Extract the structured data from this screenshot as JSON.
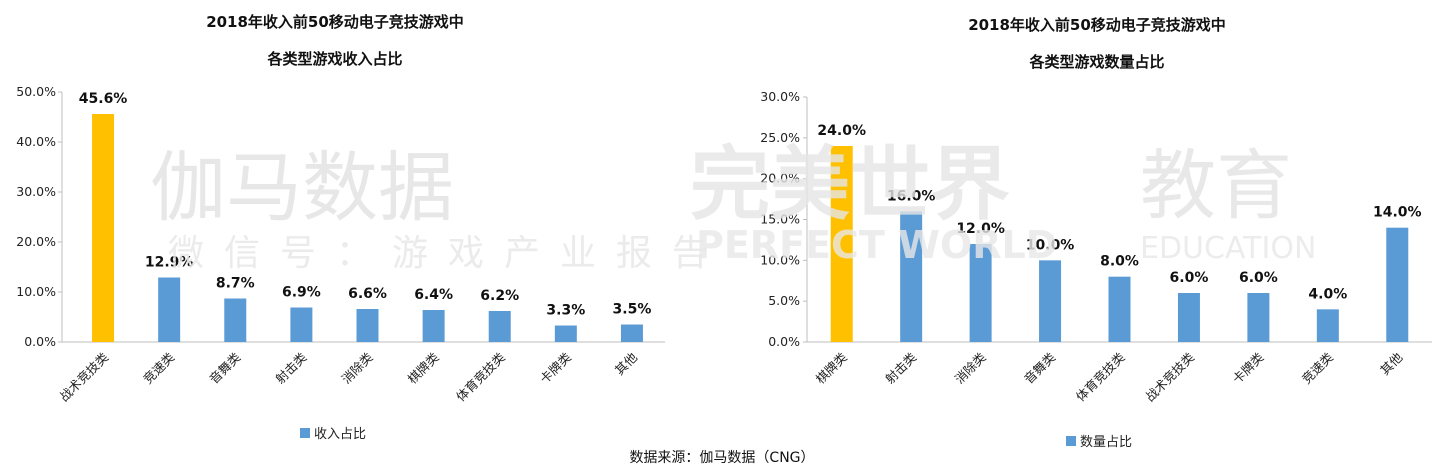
{
  "source": "数据来源：伽马数据（CNG）",
  "watermarks": {
    "gamma_big": "伽马数据",
    "gamma_sub": "微信号：游戏产业报告",
    "pw_cn": "完美世界",
    "pw_edu": "教育",
    "pw_en": "PERFECT WORLD",
    "pw_edu_en": "EDUCATION"
  },
  "colors": {
    "highlight": "#FFC000",
    "bar": "#5B9BD5",
    "axis": "#bfbfbf"
  },
  "chart_data": [
    {
      "type": "bar",
      "title_line1": "2018年收入前50移动电子竞技游戏中",
      "title_line2": "各类型游戏收入占比",
      "legend": "收入占比",
      "categories": [
        "战术竞技类",
        "竞速类",
        "音舞类",
        "射击类",
        "消除类",
        "棋牌类",
        "体育竞技类",
        "卡牌类",
        "其他"
      ],
      "values": [
        45.6,
        12.9,
        8.7,
        6.9,
        6.6,
        6.4,
        6.2,
        3.3,
        3.5
      ],
      "labels": [
        "45.6%",
        "12.9%",
        "8.7%",
        "6.9%",
        "6.6%",
        "6.4%",
        "6.2%",
        "3.3%",
        "3.5%"
      ],
      "highlight_index": 0,
      "ylim": [
        0,
        50
      ],
      "yticks": [
        "0.0%",
        "10.0%",
        "20.0%",
        "30.0%",
        "40.0%",
        "50.0%"
      ],
      "grid": false,
      "legend_position": "bottom"
    },
    {
      "type": "bar",
      "title_line1": "2018年收入前50移动电子竞技游戏中",
      "title_line2": "各类型游戏数量占比",
      "legend": "数量占比",
      "categories": [
        "棋牌类",
        "射击类",
        "消除类",
        "音舞类",
        "体育竞技类",
        "战术竞技类",
        "卡牌类",
        "竞速类",
        "其他"
      ],
      "values": [
        24.0,
        16.0,
        12.0,
        10.0,
        8.0,
        6.0,
        6.0,
        4.0,
        14.0
      ],
      "labels": [
        "24.0%",
        "16.0%",
        "12.0%",
        "10.0%",
        "8.0%",
        "6.0%",
        "6.0%",
        "4.0%",
        "14.0%"
      ],
      "highlight_index": 0,
      "ylim": [
        0,
        30
      ],
      "yticks": [
        "0.0%",
        "5.0%",
        "10.0%",
        "15.0%",
        "20.0%",
        "25.0%",
        "30.0%"
      ],
      "grid": false,
      "legend_position": "bottom"
    }
  ]
}
